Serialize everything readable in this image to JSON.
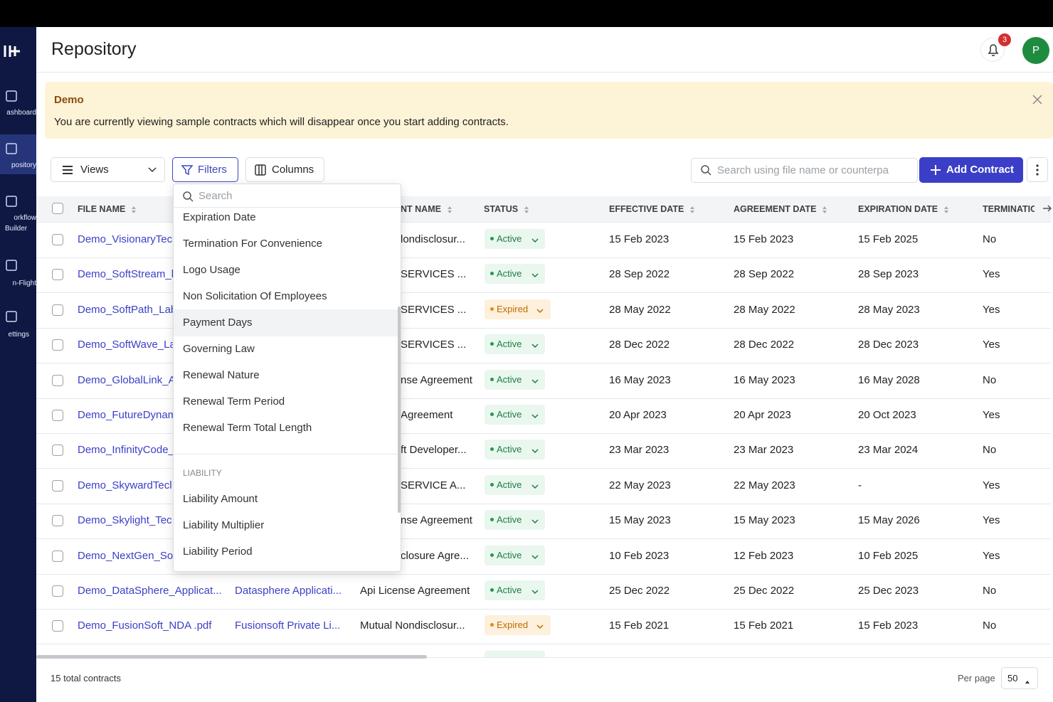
{
  "sidebar": {
    "items": [
      {
        "label": "ashboard"
      },
      {
        "label": "pository"
      },
      {
        "label": "orkflow",
        "label2": "Builder"
      },
      {
        "label": "n-Flight"
      },
      {
        "label": "ettings"
      }
    ]
  },
  "header": {
    "title": "Repository",
    "notification_count": "3",
    "avatar": "P"
  },
  "banner": {
    "title": "Demo",
    "message": "You are currently viewing sample contracts which will disappear once you start adding contracts."
  },
  "toolbar": {
    "views": "Views",
    "filters": "Filters",
    "columns": "Columns",
    "search_placeholder": "Search using file name or counterpa",
    "add_button": "Add Contract"
  },
  "table": {
    "headers": [
      "FILE NAME",
      "NT NAME",
      "STATUS",
      "EFFECTIVE DATE",
      "AGREEMENT DATE",
      "EXPIRATION DATE",
      "TERMINATIO"
    ],
    "rows": [
      {
        "file": "Demo_VisionaryTec",
        "agreement": "londisclosur...",
        "status": "Active",
        "effective": "15 Feb 2023",
        "agreement_date": "15 Feb 2023",
        "expiration": "15 Feb 2025",
        "termination": "No"
      },
      {
        "file": "Demo_SoftStream_l",
        "agreement": "SERVICES ...",
        "status": "Active",
        "effective": "28 Sep 2022",
        "agreement_date": "28 Sep 2022",
        "expiration": "28 Sep 2023",
        "termination": "Yes"
      },
      {
        "file": "Demo_SoftPath_Lab",
        "agreement": "SERVICES ...",
        "status": "Expired",
        "effective": "28 May 2022",
        "agreement_date": "28 May 2022",
        "expiration": "28 May 2023",
        "termination": "Yes"
      },
      {
        "file": "Demo_SoftWave_La",
        "agreement": "SERVICES ...",
        "status": "Active",
        "effective": "28 Dec 2022",
        "agreement_date": "28 Dec 2022",
        "expiration": "28 Dec 2023",
        "termination": "Yes"
      },
      {
        "file": "Demo_GlobalLink_A",
        "agreement": "nse Agreement",
        "status": "Active",
        "effective": "16 May 2023",
        "agreement_date": "16 May 2023",
        "expiration": "16 May 2028",
        "termination": "No"
      },
      {
        "file": "Demo_FutureDynam",
        "agreement": "Agreement",
        "status": "Active",
        "effective": "20 Apr 2023",
        "agreement_date": "20 Apr 2023",
        "expiration": "20 Oct 2023",
        "termination": "Yes"
      },
      {
        "file": "Demo_InfinityCode_",
        "agreement": "ft Developer...",
        "status": "Active",
        "effective": "23 Mar 2023",
        "agreement_date": "23 Mar 2023",
        "expiration": "23 Mar 2024",
        "termination": "No"
      },
      {
        "file": "Demo_SkywardTecl",
        "agreement": "SERVICE A...",
        "status": "Active",
        "effective": "22 May 2023",
        "agreement_date": "22 May 2023",
        "expiration": "-",
        "termination": "Yes"
      },
      {
        "file": "Demo_Skylight_Tec",
        "agreement": "nse Agreement",
        "status": "Active",
        "effective": "15 May 2023",
        "agreement_date": "15 May 2023",
        "expiration": "15 May 2026",
        "termination": "Yes"
      },
      {
        "file": "Demo_NextGen_So",
        "agreement": "closure Agre...",
        "status": "Active",
        "effective": "10 Feb 2023",
        "agreement_date": "12 Feb 2023",
        "expiration": "10 Feb 2025",
        "termination": "Yes"
      },
      {
        "file": "Demo_DataSphere_Applicat...",
        "counterparty": "Datasphere Applicati...",
        "agreement": "Api License Agreement",
        "status": "Active",
        "effective": "25 Dec 2022",
        "agreement_date": "25 Dec 2022",
        "expiration": "25 Dec 2023",
        "termination": "No"
      },
      {
        "file": "Demo_FusionSoft_NDA .pdf",
        "counterparty": "Fusionsoft Private Li...",
        "agreement": "Mutual Nondisclosur...",
        "status": "Expired",
        "effective": "15 Feb 2021",
        "agreement_date": "15 Feb 2021",
        "expiration": "15 Feb 2023",
        "termination": "No"
      }
    ]
  },
  "dropdown": {
    "search_placeholder": "Search",
    "items": [
      "Expiration Date",
      "Termination For Convenience",
      "Logo Usage",
      "Non Solicitation Of Employees",
      "Payment Days",
      "Governing Law",
      "Renewal Nature",
      "Renewal Term Period",
      "Renewal Term Total Length"
    ],
    "section": "LIABILITY",
    "section_items": [
      "Liability Amount",
      "Liability Multiplier",
      "Liability Period"
    ]
  },
  "footer": {
    "total": "15 total contracts",
    "per_page_label": "Per page",
    "per_page": "50"
  }
}
